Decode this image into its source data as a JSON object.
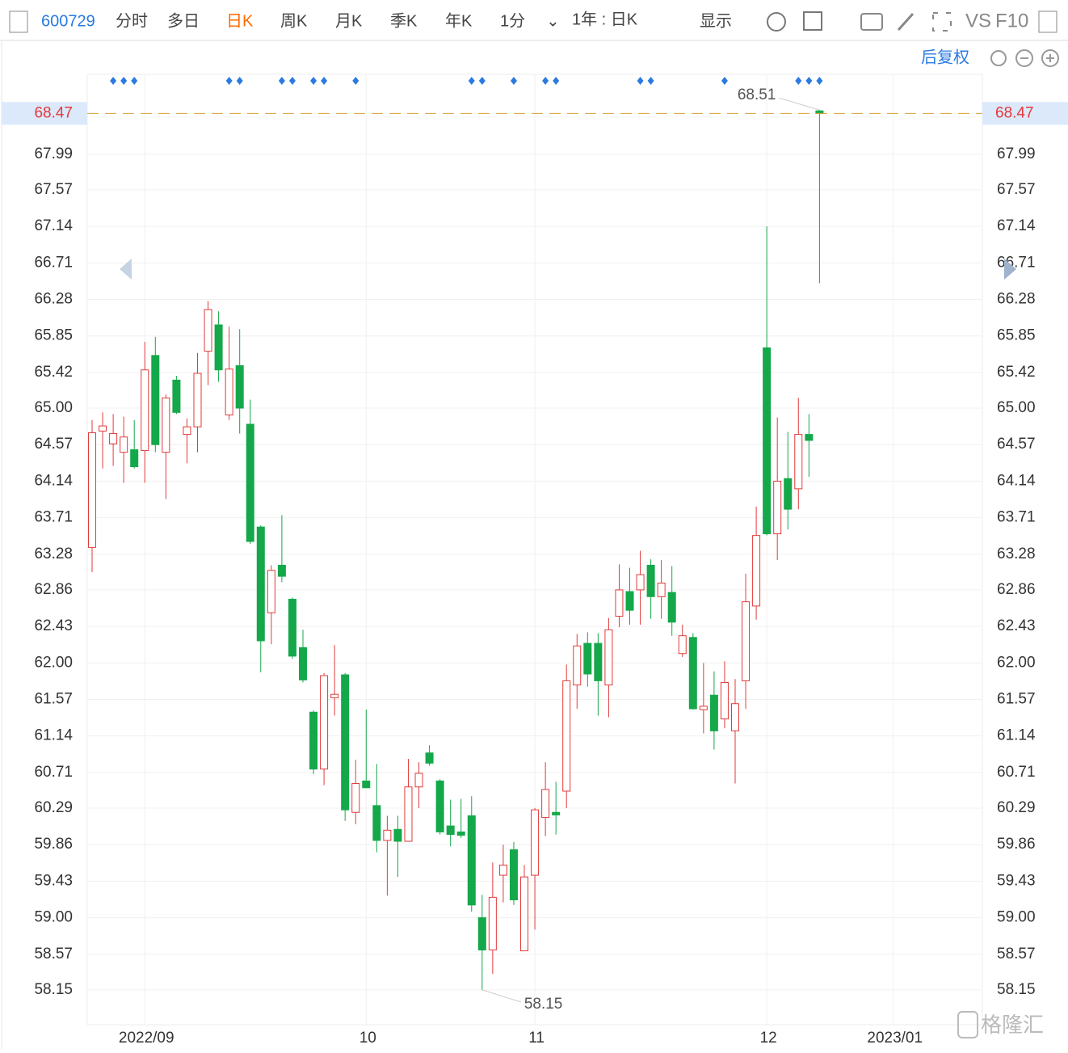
{
  "toolbar": {
    "code": "600729",
    "tabs": [
      "分时",
      "多日",
      "日K",
      "周K",
      "月K",
      "季K",
      "年K",
      "1分"
    ],
    "period": "1年 : 日K",
    "display": "显示",
    "vs": "VS",
    "f10": "F10",
    "adjust": "后复权"
  },
  "watermark": "格隆汇",
  "chart_data": {
    "type": "candlestick",
    "ylim": [
      57.74,
      68.93
    ],
    "yticks": [
      58.15,
      58.57,
      {
        "value": 59,
        "label": "59.00"
      },
      59.43,
      59.86,
      60.29,
      60.71,
      61.14,
      61.57,
      {
        "value": 62,
        "label": "62.00"
      },
      62.43,
      62.86,
      63.28,
      63.71,
      64.14,
      64.57,
      {
        "value": 65,
        "label": "65.00"
      },
      65.42,
      65.85,
      66.28,
      66.71,
      67.14,
      67.57,
      67.99
    ],
    "xlim": [
      -0.46,
      84.45
    ],
    "xticks": [
      {
        "value": 5,
        "label": "2022/09"
      },
      {
        "value": 26,
        "label": "10"
      },
      {
        "value": 42,
        "label": "11"
      },
      {
        "value": 64,
        "label": "12"
      },
      {
        "value": 76,
        "label": "2023/01"
      }
    ],
    "up_color": "#e23b3b",
    "down_color": "#14a84a",
    "grid": true,
    "open": [
      63.36,
      64.73,
      64.58,
      64.48,
      64.51,
      64.5,
      65.62,
      64.48,
      65.33,
      64.69,
      64.78,
      65.67,
      65.98,
      64.92,
      65.5,
      64.81,
      63.6,
      62.59,
      63.15,
      62.75,
      62.18,
      61.42,
      60.75,
      61.59,
      61.86,
      60.24,
      60.61,
      60.32,
      59.91,
      60.04,
      59.9,
      60.54,
      60.94,
      60.61,
      60.08,
      60.01,
      60.2,
      59,
      58.62,
      59.5,
      59.8,
      58.61,
      59.5,
      60.18,
      60.24,
      60.49,
      61.74,
      62.23,
      62.23,
      61.74,
      62.55,
      62.84,
      62.86,
      63.15,
      62.78,
      62.83,
      62.11,
      62.3,
      61.45,
      61.62,
      61.34,
      61.2,
      61.79,
      62.67,
      65.71,
      63.52,
      64.17,
      64.05,
      64.69,
      68.5
    ],
    "high": [
      64.86,
      64.95,
      64.93,
      64.9,
      64.86,
      65.78,
      65.84,
      65.16,
      65.38,
      64.88,
      65.65,
      66.26,
      66.14,
      65.96,
      65.93,
      65.1,
      63.62,
      63.15,
      63.74,
      62.77,
      62.39,
      61.44,
      61.88,
      62.21,
      61.88,
      60.86,
      61.45,
      60.81,
      60.2,
      60.2,
      60.87,
      60.83,
      61.03,
      60.63,
      60.39,
      60.4,
      60.43,
      59.27,
      59.65,
      59.86,
      59.89,
      59.62,
      60.29,
      60.83,
      60.6,
      61.98,
      62.34,
      62.36,
      62.35,
      62.53,
      63.16,
      63.12,
      63.32,
      63.22,
      63.21,
      63.14,
      62.45,
      62.35,
      62,
      61.9,
      62.02,
      61.81,
      63.05,
      63.84,
      67.14,
      64.89,
      64.72,
      65.12,
      64.93,
      68.51
    ],
    "low": [
      63.07,
      64.29,
      64.32,
      64.12,
      64.29,
      64.12,
      64.48,
      63.93,
      64.93,
      64.35,
      64.48,
      65.27,
      65.31,
      64.86,
      64.7,
      63.4,
      61.89,
      62.22,
      62.95,
      62.05,
      61.77,
      60.69,
      60.56,
      61.38,
      60.14,
      60.1,
      60.53,
      59.77,
      59.26,
      59.48,
      59.9,
      60.29,
      60.79,
      59.98,
      59.84,
      59.94,
      59.07,
      58.15,
      58.34,
      59.18,
      59.15,
      58.61,
      58.86,
      59.96,
      59.98,
      60.29,
      61.46,
      61.72,
      61.38,
      61.36,
      62.42,
      62.45,
      62.45,
      62.52,
      62.52,
      62.32,
      62.07,
      61.45,
      61.17,
      60.98,
      61.23,
      60.58,
      61.46,
      62.51,
      63.5,
      63.21,
      63.57,
      63.81,
      64.19,
      66.47
    ],
    "close": [
      64.71,
      64.79,
      64.7,
      64.66,
      64.31,
      65.45,
      64.57,
      65.12,
      64.95,
      64.78,
      65.41,
      66.16,
      65.45,
      65.46,
      65,
      63.43,
      62.26,
      63.09,
      63.02,
      62.08,
      61.8,
      60.75,
      61.85,
      61.63,
      60.27,
      60.58,
      60.53,
      59.91,
      60.03,
      59.9,
      60.54,
      60.7,
      60.82,
      60.01,
      59.98,
      59.97,
      59.15,
      58.62,
      59.24,
      59.62,
      59.21,
      59.48,
      60.27,
      60.51,
      60.21,
      61.79,
      62.2,
      61.87,
      61.79,
      62.39,
      62.86,
      62.62,
      63.04,
      62.78,
      62.94,
      62.48,
      62.32,
      61.46,
      61.49,
      61.2,
      61.77,
      61.52,
      62.72,
      63.5,
      63.52,
      64.14,
      63.81,
      64.69,
      64.62,
      68.47
    ]
  }
}
